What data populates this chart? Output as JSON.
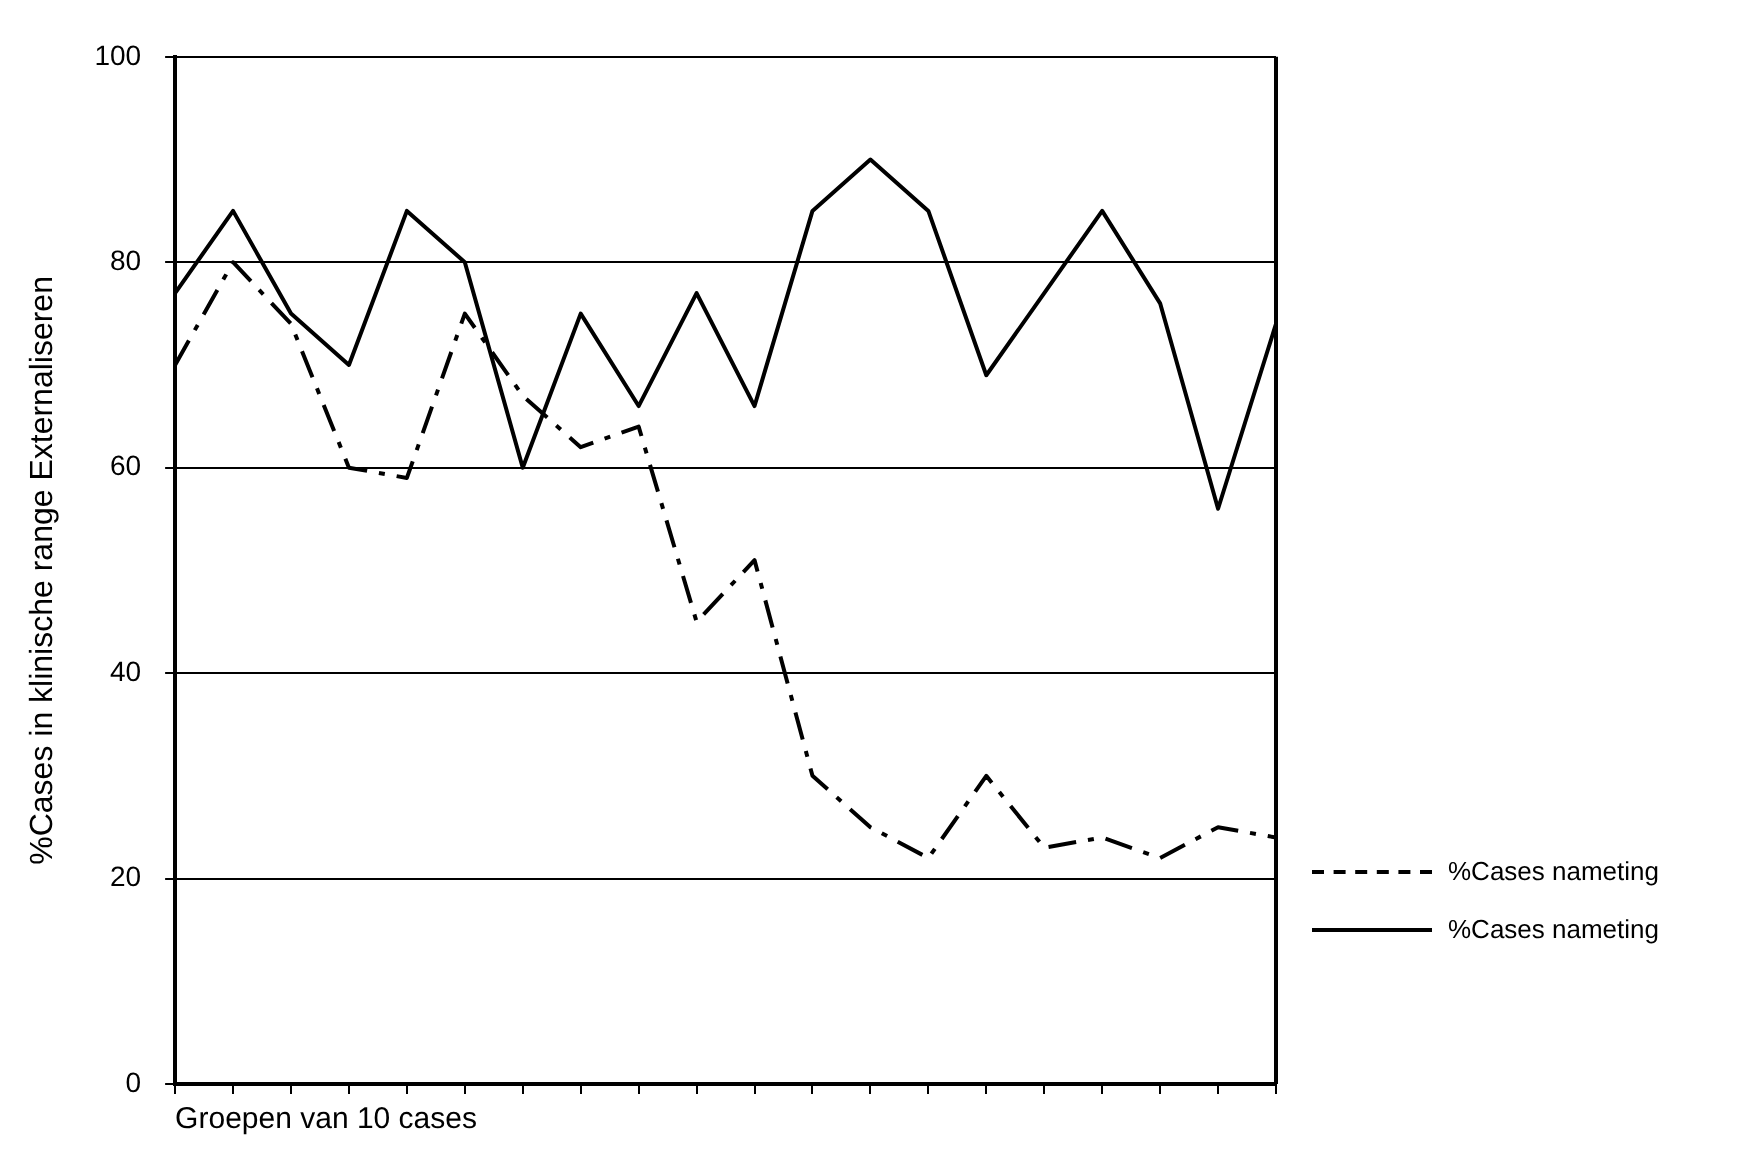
{
  "chart_data": {
    "type": "line",
    "xlabel": "Groepen van 10 cases",
    "ylabel": "%Cases in klinische range Externaliseren",
    "categories": [
      null,
      null,
      null,
      null,
      null,
      null,
      null,
      null,
      null,
      null,
      null,
      null,
      null,
      null,
      null,
      null,
      null,
      null,
      null,
      null
    ],
    "series": [
      {
        "name": "%Cases nameting",
        "color": "#000000",
        "line_style": "dashed",
        "values": [
          70,
          80,
          74,
          60,
          59,
          75,
          67,
          62,
          64,
          45,
          51,
          30,
          25,
          22,
          30,
          23,
          24,
          22,
          25,
          24
        ]
      },
      {
        "name": "%Cases nameting",
        "color": "#000000",
        "line_style": "solid",
        "values": [
          77,
          85,
          75,
          70,
          85,
          80,
          60,
          75,
          66,
          77,
          66,
          85,
          90,
          85,
          69,
          77,
          85,
          76,
          56,
          74
        ]
      }
    ],
    "ylim": [
      0,
      100
    ],
    "yticks": [
      0,
      20,
      40,
      60,
      80,
      100
    ],
    "grid": "y",
    "legend": "right",
    "tick_labels": "y",
    "marker": "none"
  }
}
